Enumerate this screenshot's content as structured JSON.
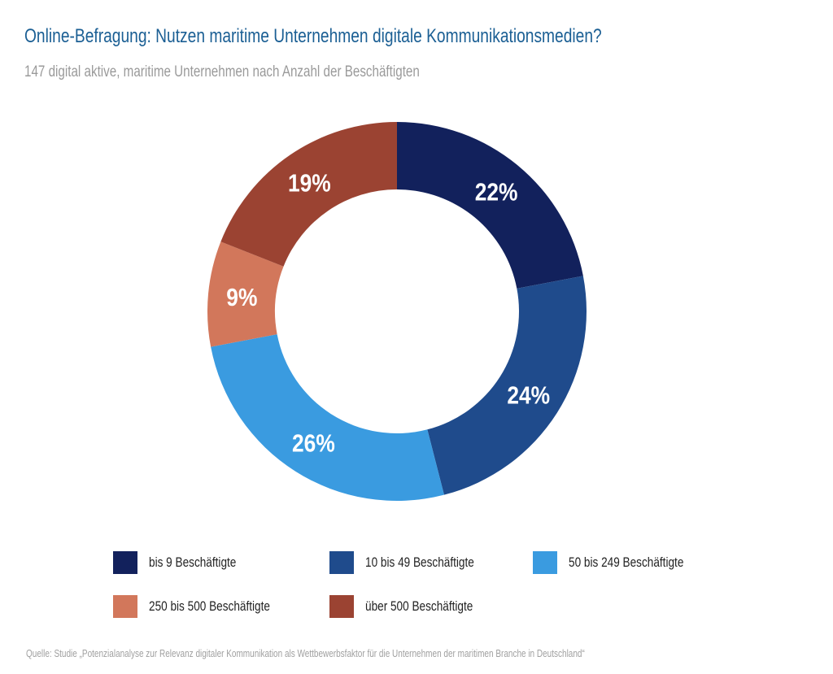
{
  "title": "Online-Befragung: Nutzen maritime Unternehmen digitale Kommunikationsmedien?",
  "subtitle": "147 digital aktive, maritime Unternehmen nach Anzahl der Beschäftigten",
  "source": "Quelle: Studie „Potenzialanalyse zur Relevanz digitaler Kommunikation als Wettbewerbsfaktor für die Unternehmen der maritimen Branche in Deutschland“",
  "chart_data": {
    "type": "pie",
    "variant": "donut",
    "title": "Online-Befragung: Nutzen maritime Unternehmen digitale Kommunikationsmedien?",
    "unit": "%",
    "categories": [
      "bis 9 Beschäftigte",
      "10 bis 49 Beschäftigte",
      "50 bis 249 Beschäftigte",
      "250 bis 500 Beschäftigte",
      "über 500 Beschäftigte"
    ],
    "values": [
      22,
      24,
      26,
      9,
      19
    ],
    "labels": [
      "22%",
      "24%",
      "26%",
      "9%",
      "19%"
    ],
    "colors": [
      "#12215c",
      "#1f4b8c",
      "#3a9be0",
      "#d2775b",
      "#9b4332"
    ],
    "legend": "bottom"
  }
}
